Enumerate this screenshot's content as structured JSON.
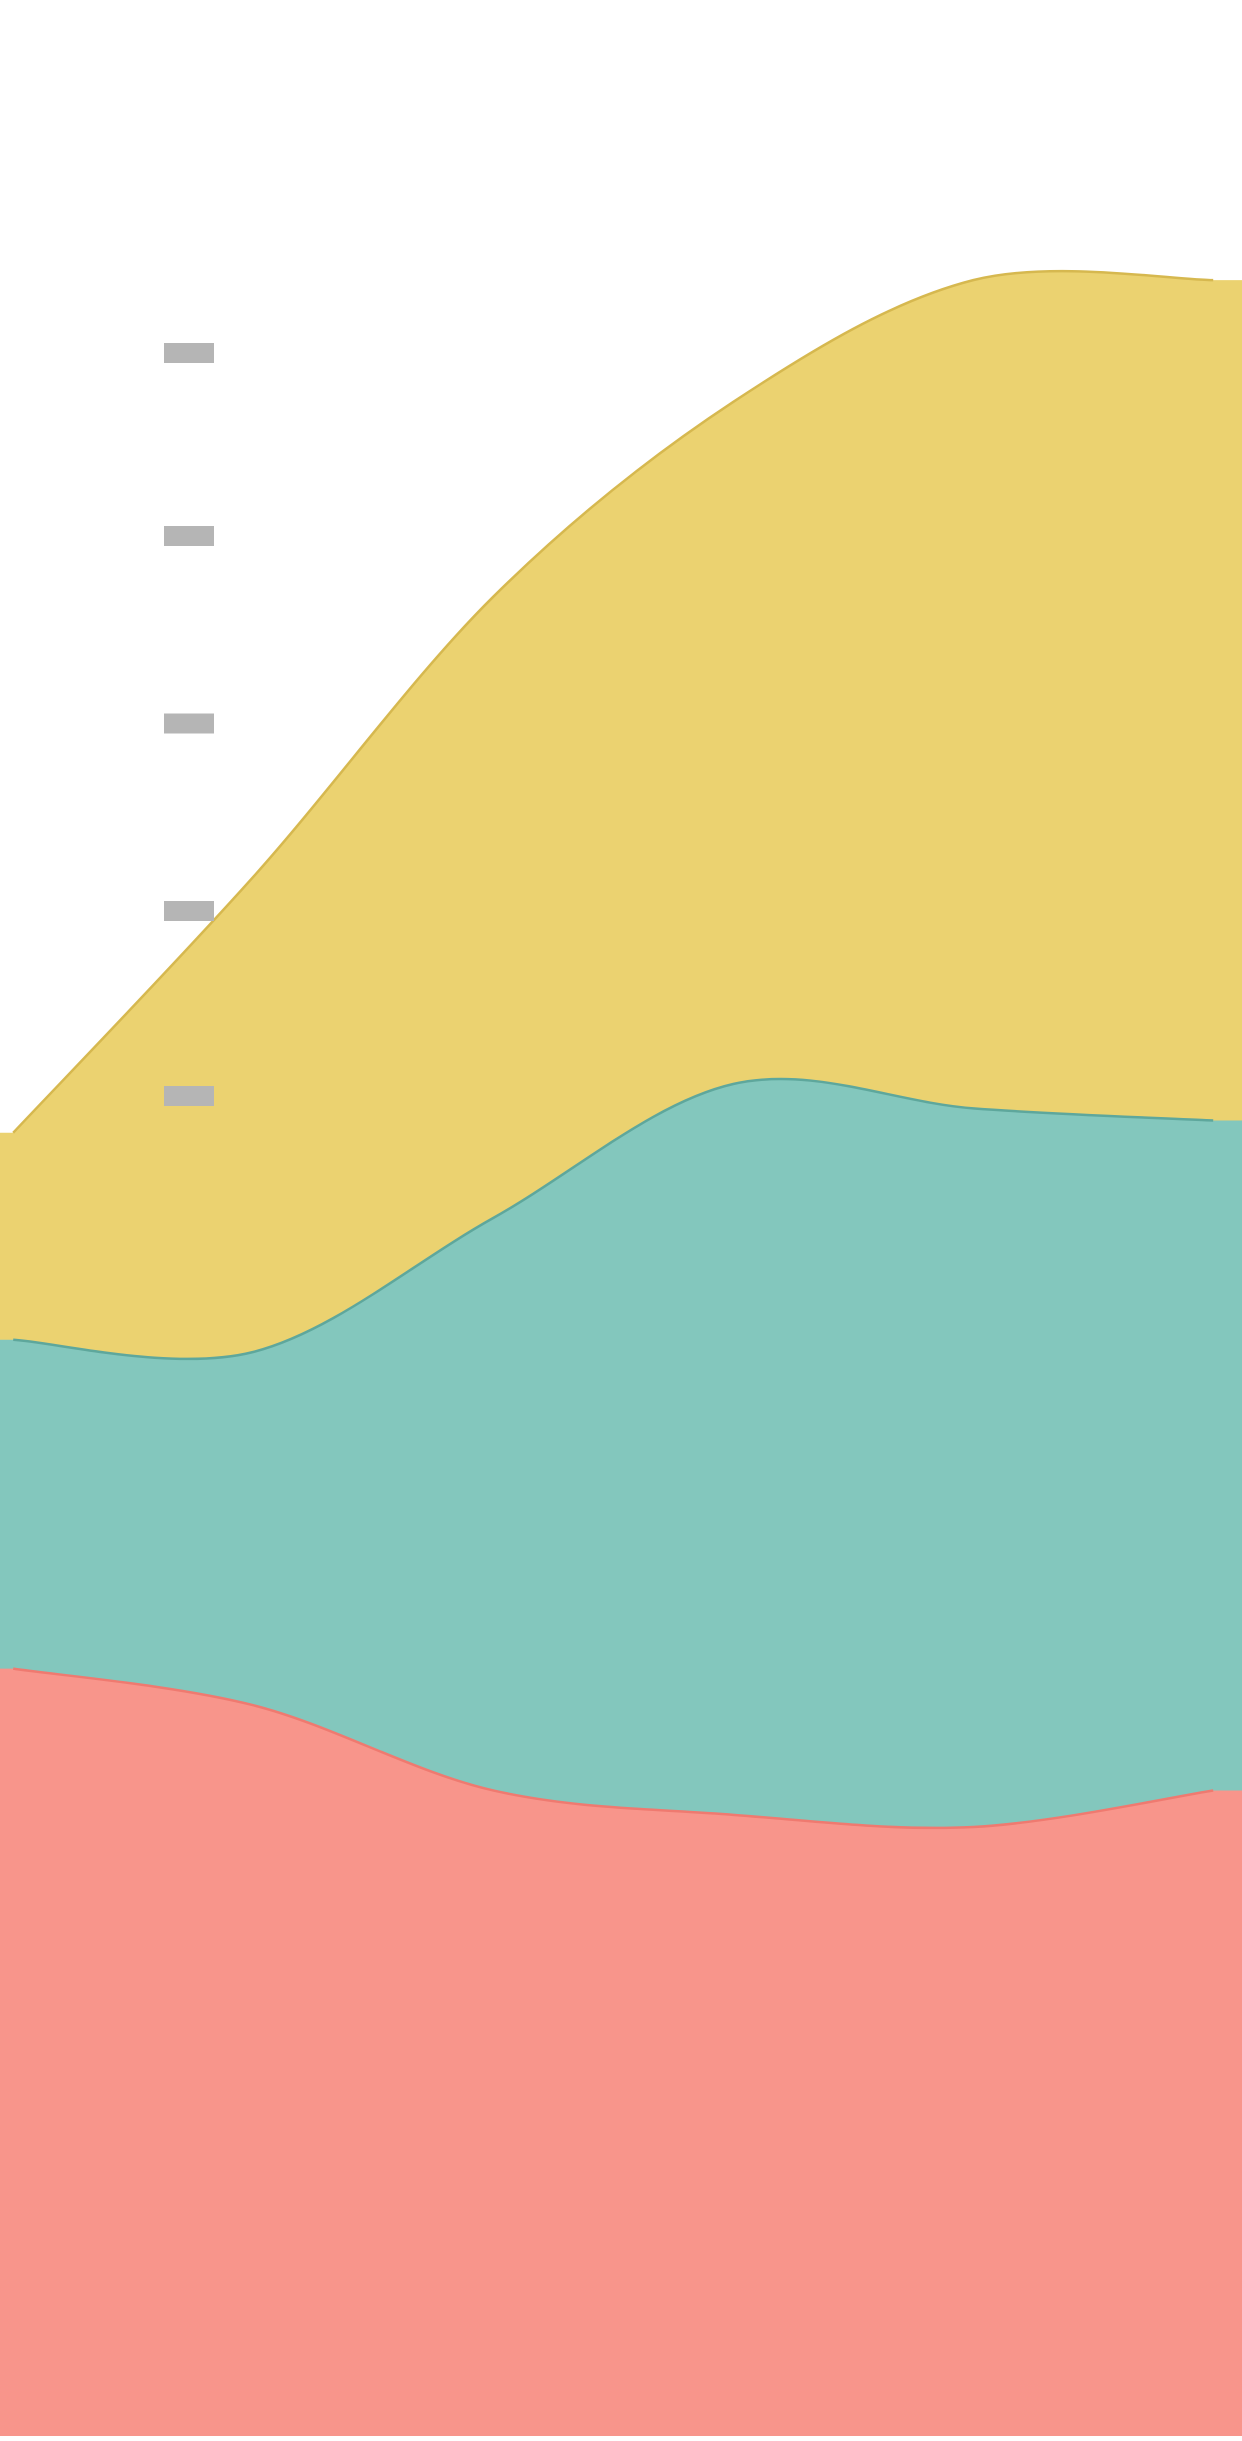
{
  "chart_data": {
    "type": "area",
    "stacked": true,
    "smooth": true,
    "x": [
      0,
      1,
      2,
      3,
      4,
      5
    ],
    "ylim": [
      0,
      1
    ],
    "y_ticks": [
      0.55,
      0.626,
      0.703,
      0.78,
      0.855
    ],
    "series": [
      {
        "values": [
          0.315,
          0.3,
          0.265,
          0.255,
          0.25,
          0.265
        ],
        "color": "#f8958b",
        "stroke": "#ef7a70"
      },
      {
        "values": [
          0.135,
          0.145,
          0.235,
          0.3,
          0.295,
          0.275
        ],
        "color": "#83c7bd",
        "stroke": "#5ea79c"
      },
      {
        "values": [
          0.085,
          0.195,
          0.255,
          0.28,
          0.34,
          0.345
        ],
        "color": "#ebd270",
        "stroke": "#d6b84f"
      }
    ],
    "tick_color": "#b5b5b5",
    "grid": false
  }
}
